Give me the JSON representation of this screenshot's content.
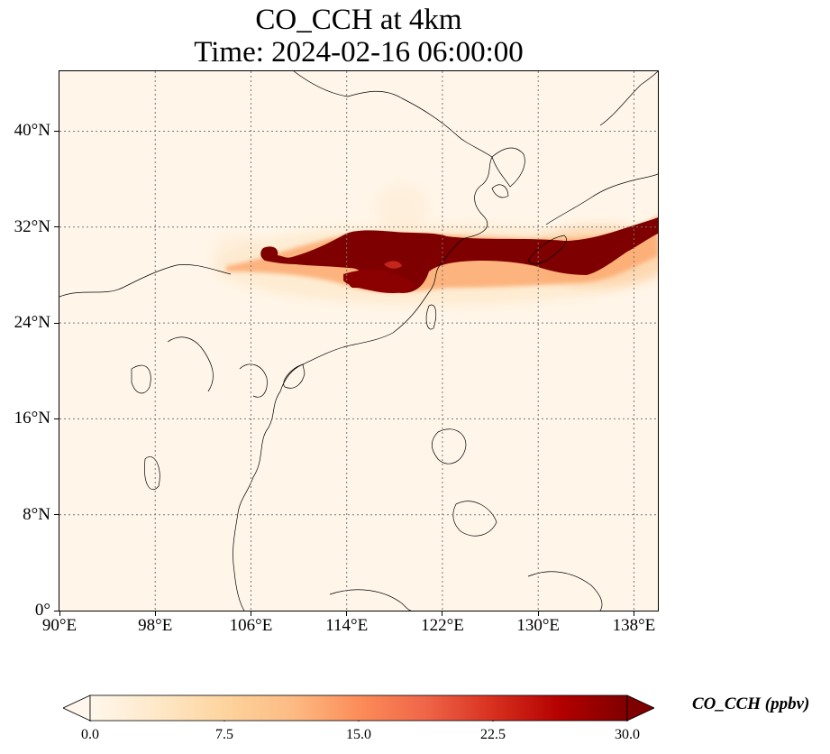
{
  "title": {
    "line1": "CO_CCH at 4km",
    "line2": "Time: 2024-02-16 06:00:00"
  },
  "map": {
    "extent": {
      "lon_min": 90,
      "lon_max": 140,
      "lat_min": 0,
      "lat_max": 45
    },
    "lat_ticks": [
      {
        "value": 0,
        "label": "0°"
      },
      {
        "value": 8,
        "label": "8°N"
      },
      {
        "value": 16,
        "label": "16°N"
      },
      {
        "value": 24,
        "label": "24°N"
      },
      {
        "value": 32,
        "label": "32°N"
      },
      {
        "value": 40,
        "label": "40°N"
      }
    ],
    "lon_ticks": [
      {
        "value": 90,
        "label": "90°E"
      },
      {
        "value": 98,
        "label": "98°E"
      },
      {
        "value": 106,
        "label": "106°E"
      },
      {
        "value": 114,
        "label": "114°E"
      },
      {
        "value": 122,
        "label": "122°E"
      },
      {
        "value": 130,
        "label": "130°E"
      },
      {
        "value": 138,
        "label": "138°E"
      }
    ],
    "gridlines": true
  },
  "colorbar": {
    "label": "CO_CCH (ppbv)",
    "min": 0,
    "max": 30,
    "extend": "both",
    "colormap": "OrRd",
    "ticks": [
      {
        "value": 0,
        "label": "0.0"
      },
      {
        "value": 7.5,
        "label": "7.5"
      },
      {
        "value": 15,
        "label": "15.0"
      },
      {
        "value": 22.5,
        "label": "22.5"
      },
      {
        "value": 30,
        "label": "30.0"
      }
    ],
    "colors": [
      "#fff7ec",
      "#fee8c8",
      "#fdd49e",
      "#fdbb84",
      "#fc8d59",
      "#ef6548",
      "#d7301f",
      "#b30000",
      "#7f0000"
    ]
  },
  "chart_data": {
    "type": "heatmap",
    "variable": "CO_CCH",
    "units": "ppbv",
    "level": "4km",
    "time": "2024-02-16 06:00:00",
    "xlim": [
      90,
      140
    ],
    "ylim": [
      0,
      45
    ],
    "vmin": 0,
    "vmax": 30,
    "plume": [
      {
        "lon": 107.5,
        "lat": 30.0,
        "value": 12
      },
      {
        "lon": 109.0,
        "lat": 29.5,
        "value": 22
      },
      {
        "lon": 112.0,
        "lat": 29.8,
        "value": 30
      },
      {
        "lon": 115.0,
        "lat": 30.5,
        "value": 30
      },
      {
        "lon": 118.0,
        "lat": 27.8,
        "value": 30
      },
      {
        "lon": 120.0,
        "lat": 30.0,
        "value": 30
      },
      {
        "lon": 124.0,
        "lat": 30.2,
        "value": 30
      },
      {
        "lon": 128.0,
        "lat": 29.8,
        "value": 30
      },
      {
        "lon": 132.0,
        "lat": 29.5,
        "value": 30
      },
      {
        "lon": 135.0,
        "lat": 30.5,
        "value": 30
      },
      {
        "lon": 138.0,
        "lat": 31.5,
        "value": 30
      },
      {
        "lon": 140.0,
        "lat": 32.3,
        "value": 28
      }
    ]
  }
}
